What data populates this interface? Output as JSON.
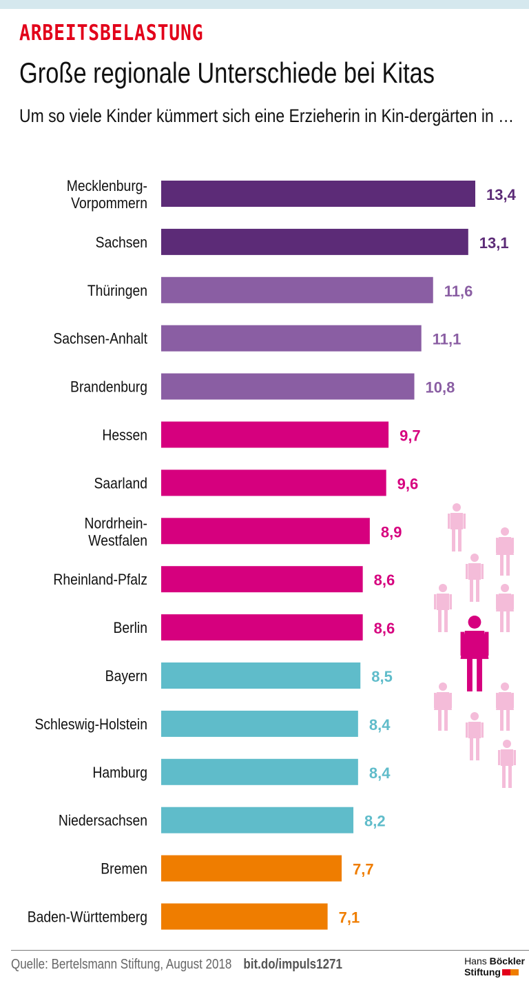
{
  "header": {
    "kicker": "ARBEITSBELASTUNG",
    "title": "Große regionale Unterschiede bei Kitas",
    "subtitle": "Um so viele Kinder kümmert sich eine Erzieherin in Kin-dergärten in …"
  },
  "footer": {
    "source": "Quelle: Bertelsmann Stiftung, August 2018",
    "link": "bit.do/impuls1271",
    "logo_line1_a": "Hans",
    "logo_line1_b": "Böckler",
    "logo_line2": "Stiftung",
    "logo_colors": [
      "#e2001a",
      "#ef7d00"
    ]
  },
  "icons": {
    "pictogram": "educator-with-children-icon",
    "colors": {
      "educator": "#d6007e",
      "children": "#f4bcd9"
    }
  },
  "chart_data": {
    "type": "bar",
    "orientation": "horizontal",
    "title": "Große regionale Unterschiede bei Kitas",
    "xlim": [
      0,
      13.4
    ],
    "grid": false,
    "categories": [
      "Mecklenburg-\nVorpommern",
      "Sachsen",
      "Thüringen",
      "Sachsen-Anhalt",
      "Brandenburg",
      "Hessen",
      "Saarland",
      "Nordrhein-\nWestfalen",
      "Rheinland-Pfalz",
      "Berlin",
      "Bayern",
      "Schleswig-Holstein",
      "Hamburg",
      "Niedersachsen",
      "Bremen",
      "Baden-Württemberg"
    ],
    "values": [
      13.4,
      13.1,
      11.6,
      11.1,
      10.8,
      9.7,
      9.6,
      8.9,
      8.6,
      8.6,
      8.5,
      8.4,
      8.4,
      8.2,
      7.7,
      7.1
    ],
    "value_labels": [
      "13,4",
      "13,1",
      "11,6",
      "11,1",
      "10,8",
      "9,7",
      "9,6",
      "8,9",
      "8,6",
      "8,6",
      "8,5",
      "8,4",
      "8,4",
      "8,2",
      "7,7",
      "7,1"
    ],
    "colors": [
      "#5c2b77",
      "#5c2b77",
      "#8a5ea3",
      "#8a5ea3",
      "#8a5ea3",
      "#d6007e",
      "#d6007e",
      "#d6007e",
      "#d6007e",
      "#d6007e",
      "#5fbcca",
      "#5fbcca",
      "#5fbcca",
      "#5fbcca",
      "#ef7d00",
      "#ef7d00"
    ]
  }
}
